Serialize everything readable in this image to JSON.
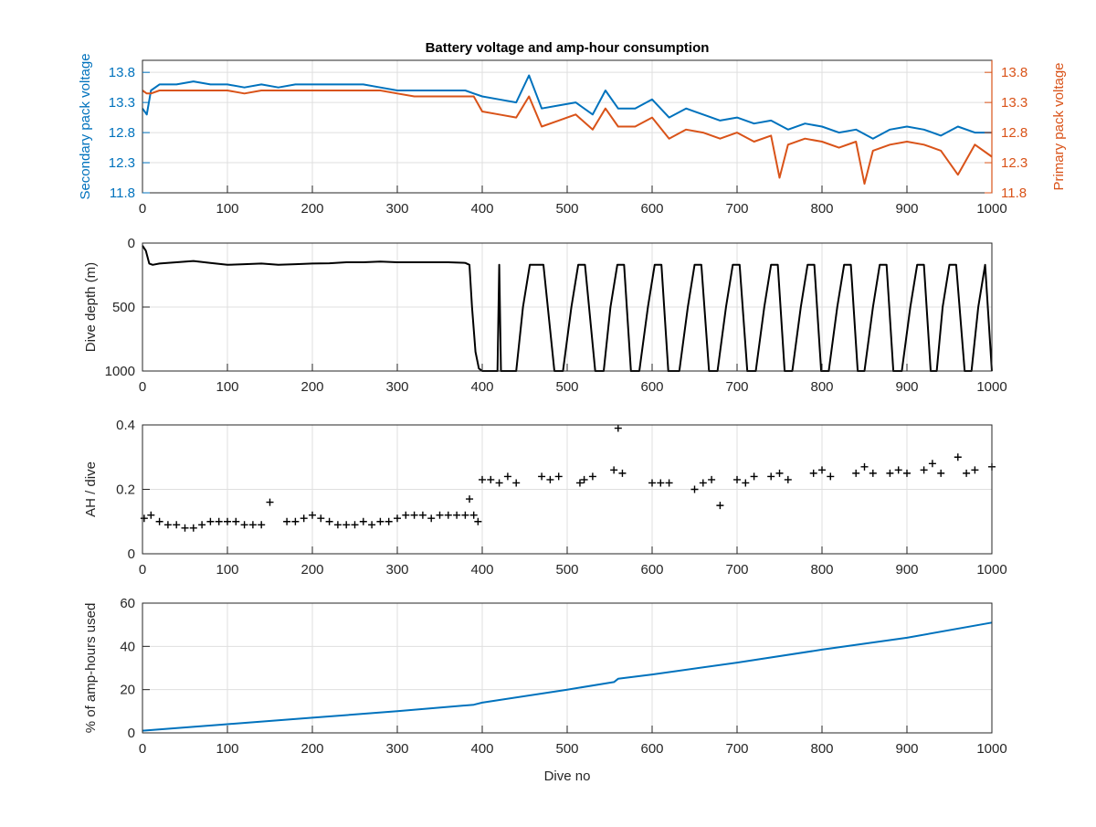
{
  "figure": {
    "title": "Battery voltage and amp-hour consumption",
    "colors": {
      "blue": "#0072bd",
      "orange": "#d95319",
      "black": "#000000",
      "grid": "#dfdfdf"
    }
  },
  "chart_data": [
    {
      "type": "line",
      "title": "Battery voltage and amp-hour consumption",
      "xlabel": "",
      "ylabel": "Secondary pack voltage",
      "y2label": "Primary pack voltage",
      "xlim": [
        0,
        1000
      ],
      "ylim": [
        11.8,
        14.0
      ],
      "y2lim": [
        11.8,
        14.0
      ],
      "xticks": [
        0,
        100,
        200,
        300,
        400,
        500,
        600,
        700,
        800,
        900,
        1000
      ],
      "yticks": [
        11.8,
        12.3,
        12.8,
        13.3,
        13.8
      ],
      "y2ticks": [
        11.8,
        12.3,
        12.8,
        13.3,
        13.8
      ],
      "grid": true,
      "series": [
        {
          "axis": "left",
          "color": "#0072bd",
          "x": [
            0,
            5,
            10,
            20,
            40,
            60,
            80,
            100,
            120,
            140,
            160,
            180,
            200,
            220,
            240,
            260,
            280,
            300,
            320,
            340,
            360,
            380,
            390,
            400,
            420,
            440,
            455,
            470,
            490,
            510,
            530,
            545,
            560,
            580,
            600,
            620,
            640,
            660,
            680,
            700,
            720,
            740,
            760,
            780,
            800,
            820,
            840,
            860,
            880,
            900,
            920,
            940,
            960,
            980,
            1000
          ],
          "y": [
            13.2,
            13.1,
            13.5,
            13.6,
            13.6,
            13.65,
            13.6,
            13.6,
            13.55,
            13.6,
            13.55,
            13.6,
            13.6,
            13.6,
            13.6,
            13.6,
            13.55,
            13.5,
            13.5,
            13.5,
            13.5,
            13.5,
            13.45,
            13.4,
            13.35,
            13.3,
            13.75,
            13.2,
            13.25,
            13.3,
            13.1,
            13.5,
            13.2,
            13.2,
            13.35,
            13.05,
            13.2,
            13.1,
            13.0,
            13.05,
            12.95,
            13.0,
            12.85,
            12.95,
            12.9,
            12.8,
            12.85,
            12.7,
            12.85,
            12.9,
            12.85,
            12.75,
            12.9,
            12.8,
            12.8
          ]
        },
        {
          "axis": "right",
          "color": "#d95319",
          "x": [
            0,
            5,
            10,
            20,
            40,
            60,
            80,
            100,
            120,
            140,
            160,
            180,
            200,
            220,
            240,
            260,
            280,
            300,
            320,
            340,
            360,
            380,
            390,
            400,
            420,
            440,
            455,
            470,
            490,
            510,
            530,
            545,
            560,
            580,
            600,
            620,
            640,
            660,
            680,
            700,
            720,
            740,
            750,
            760,
            780,
            800,
            820,
            840,
            850,
            860,
            880,
            900,
            920,
            940,
            960,
            980,
            1000
          ],
          "y": [
            13.5,
            13.45,
            13.45,
            13.5,
            13.5,
            13.5,
            13.5,
            13.5,
            13.45,
            13.5,
            13.5,
            13.5,
            13.5,
            13.5,
            13.5,
            13.5,
            13.5,
            13.45,
            13.4,
            13.4,
            13.4,
            13.4,
            13.4,
            13.15,
            13.1,
            13.05,
            13.4,
            12.9,
            13.0,
            13.1,
            12.85,
            13.2,
            12.9,
            12.9,
            13.05,
            12.7,
            12.85,
            12.8,
            12.7,
            12.8,
            12.65,
            12.75,
            12.05,
            12.6,
            12.7,
            12.65,
            12.55,
            12.65,
            11.95,
            12.5,
            12.6,
            12.65,
            12.6,
            12.5,
            12.1,
            12.6,
            12.4
          ]
        }
      ]
    },
    {
      "type": "line",
      "xlabel": "",
      "ylabel": "Dive depth (m)",
      "xlim": [
        0,
        1000
      ],
      "ylim": [
        1000,
        0
      ],
      "xticks": [
        0,
        100,
        200,
        300,
        400,
        500,
        600,
        700,
        800,
        900,
        1000
      ],
      "yticks": [
        0,
        500,
        1000
      ],
      "grid": true,
      "series": [
        {
          "color": "#000000",
          "x": [
            0,
            4,
            8,
            12,
            20,
            40,
            60,
            80,
            100,
            120,
            140,
            160,
            180,
            200,
            220,
            240,
            260,
            280,
            300,
            320,
            340,
            360,
            380,
            385,
            388,
            392,
            396,
            400,
            410,
            418,
            420,
            422,
            430,
            440,
            448,
            456,
            464,
            472,
            485,
            495,
            505,
            513,
            521,
            533,
            543,
            551,
            559,
            567,
            575,
            585,
            595,
            603,
            611,
            619,
            632,
            642,
            650,
            658,
            667,
            677,
            687,
            695,
            703,
            712,
            722,
            732,
            740,
            748,
            756,
            765,
            775,
            783,
            791,
            799,
            808,
            818,
            826,
            834,
            842,
            850,
            860,
            868,
            876,
            884,
            894,
            904,
            912,
            920,
            928,
            935,
            942,
            950,
            958,
            968,
            976,
            984,
            992,
            1000
          ],
          "y": [
            20,
            60,
            160,
            170,
            160,
            150,
            140,
            155,
            170,
            165,
            160,
            170,
            165,
            160,
            158,
            150,
            150,
            145,
            150,
            150,
            150,
            150,
            155,
            170,
            500,
            850,
            980,
            1000,
            1000,
            1000,
            170,
            1000,
            1000,
            1000,
            500,
            170,
            170,
            170,
            1000,
            1000,
            500,
            170,
            170,
            1000,
            1000,
            500,
            170,
            170,
            1000,
            1000,
            500,
            170,
            170,
            1000,
            1000,
            500,
            170,
            170,
            1000,
            1000,
            500,
            170,
            170,
            1000,
            1000,
            500,
            170,
            170,
            1000,
            1000,
            500,
            170,
            170,
            1000,
            1000,
            500,
            170,
            170,
            1000,
            1000,
            500,
            170,
            170,
            1000,
            1000,
            500,
            170,
            170,
            1000,
            1000,
            500,
            170,
            170,
            1000,
            1000,
            500,
            170,
            1000
          ]
        }
      ]
    },
    {
      "type": "scatter",
      "xlabel": "",
      "ylabel": "AH / dive",
      "xlim": [
        0,
        1000
      ],
      "ylim": [
        0,
        0.4
      ],
      "xticks": [
        0,
        100,
        200,
        300,
        400,
        500,
        600,
        700,
        800,
        900,
        1000
      ],
      "yticks": [
        0,
        0.2,
        0.4
      ],
      "ytick_labels": [
        "0",
        "0.2",
        "0.4"
      ],
      "grid": true,
      "series": [
        {
          "color": "#000000",
          "x": [
            2,
            10,
            20,
            30,
            40,
            50,
            60,
            70,
            80,
            90,
            100,
            110,
            120,
            130,
            140,
            150,
            170,
            180,
            190,
            200,
            210,
            220,
            230,
            240,
            250,
            260,
            270,
            280,
            290,
            300,
            310,
            320,
            330,
            340,
            350,
            360,
            370,
            380,
            385,
            390,
            395,
            400,
            410,
            420,
            430,
            440,
            470,
            480,
            490,
            515,
            520,
            530,
            555,
            560,
            565,
            600,
            610,
            620,
            650,
            660,
            670,
            680,
            700,
            710,
            720,
            740,
            750,
            760,
            790,
            800,
            810,
            840,
            850,
            860,
            880,
            890,
            900,
            920,
            930,
            940,
            960,
            970,
            980,
            1000
          ],
          "y": [
            0.11,
            0.12,
            0.1,
            0.09,
            0.09,
            0.08,
            0.08,
            0.09,
            0.1,
            0.1,
            0.1,
            0.1,
            0.09,
            0.09,
            0.09,
            0.16,
            0.1,
            0.1,
            0.11,
            0.12,
            0.11,
            0.1,
            0.09,
            0.09,
            0.09,
            0.1,
            0.09,
            0.1,
            0.1,
            0.11,
            0.12,
            0.12,
            0.12,
            0.11,
            0.12,
            0.12,
            0.12,
            0.12,
            0.17,
            0.12,
            0.1,
            0.23,
            0.23,
            0.22,
            0.24,
            0.22,
            0.24,
            0.23,
            0.24,
            0.22,
            0.23,
            0.24,
            0.26,
            0.39,
            0.25,
            0.22,
            0.22,
            0.22,
            0.2,
            0.22,
            0.23,
            0.15,
            0.23,
            0.22,
            0.24,
            0.24,
            0.25,
            0.23,
            0.25,
            0.26,
            0.24,
            0.25,
            0.27,
            0.25,
            0.25,
            0.26,
            0.25,
            0.26,
            0.28,
            0.25,
            0.3,
            0.25,
            0.26,
            0.27
          ]
        }
      ]
    },
    {
      "type": "line",
      "xlabel": "Dive no",
      "ylabel": "% of amp-hours used",
      "xlim": [
        0,
        1000
      ],
      "ylim": [
        0,
        60
      ],
      "xticks": [
        0,
        100,
        200,
        300,
        400,
        500,
        600,
        700,
        800,
        900,
        1000
      ],
      "yticks": [
        0,
        20,
        40,
        60
      ],
      "grid": true,
      "series": [
        {
          "color": "#0072bd",
          "x": [
            0,
            100,
            200,
            300,
            390,
            400,
            500,
            555,
            560,
            600,
            700,
            800,
            900,
            1000
          ],
          "y": [
            1,
            4,
            7,
            10,
            13,
            14,
            20,
            23.5,
            25,
            27,
            32.5,
            38.5,
            44,
            51
          ]
        }
      ]
    }
  ]
}
